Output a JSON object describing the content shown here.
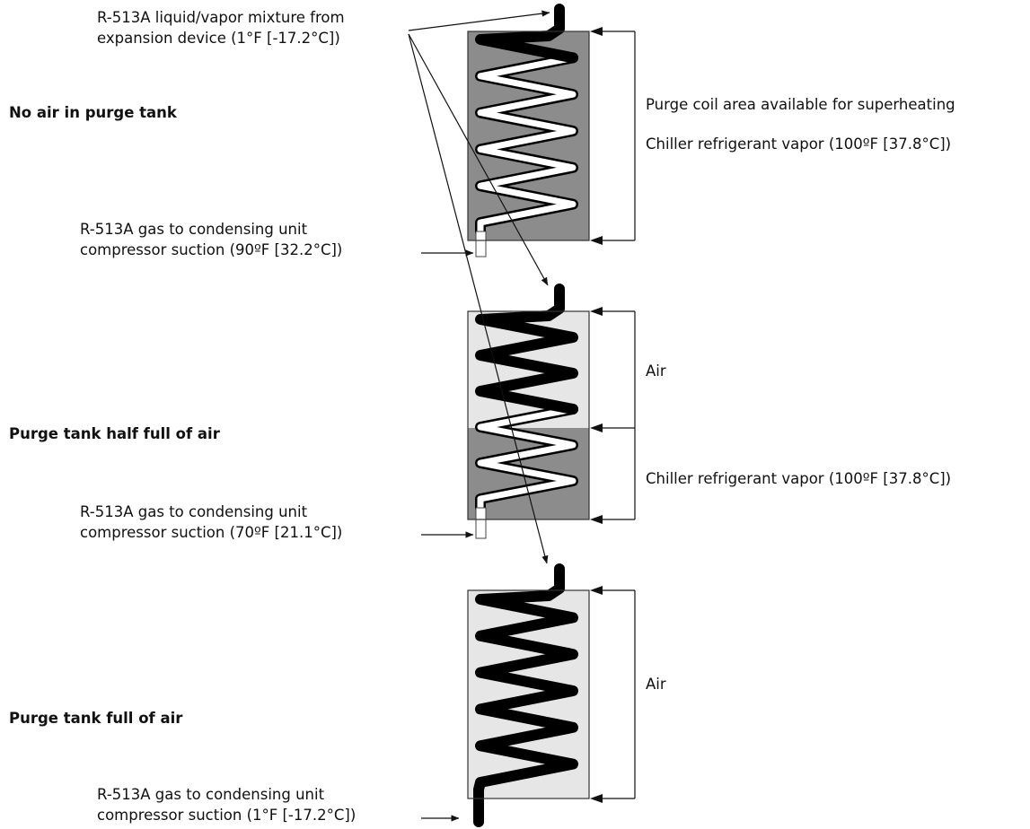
{
  "labels": {
    "inlet_line1": "R-513A liquid/vapor mixture from",
    "inlet_line2": "expansion device (1°F [-17.2°C])",
    "purge_coil_area": "Purge coil area available for superheating",
    "vapor_top": "Chiller refrigerant vapor (100ºF [37.8°C])",
    "vapor_mid": "Chiller refrigerant vapor (100ºF [37.8°C])",
    "air_mid": "Air",
    "air_bottom": "Air"
  },
  "states": [
    {
      "title": "No air in purge tank",
      "outlet_line1": "R-513A gas to condensing unit",
      "outlet_line2": "compressor suction (90ºF [32.2°C])",
      "air_fraction": 0
    },
    {
      "title": "Purge tank half full of air",
      "outlet_line1": "R-513A gas to condensing unit",
      "outlet_line2": "compressor suction (70ºF [21.1°C])",
      "air_fraction": 0.5
    },
    {
      "title": "Purge tank full of air",
      "outlet_line1": "R-513A gas to condensing unit",
      "outlet_line2": "compressor suction (1°F [-17.2°C])",
      "air_fraction": 1
    }
  ],
  "colors": {
    "refrigerant_vapor": "#8c8c8c",
    "air": "#e6e6e6",
    "liquid_coil": "#000000",
    "superheated_coil": "#ffffff",
    "outline": "#333333"
  }
}
